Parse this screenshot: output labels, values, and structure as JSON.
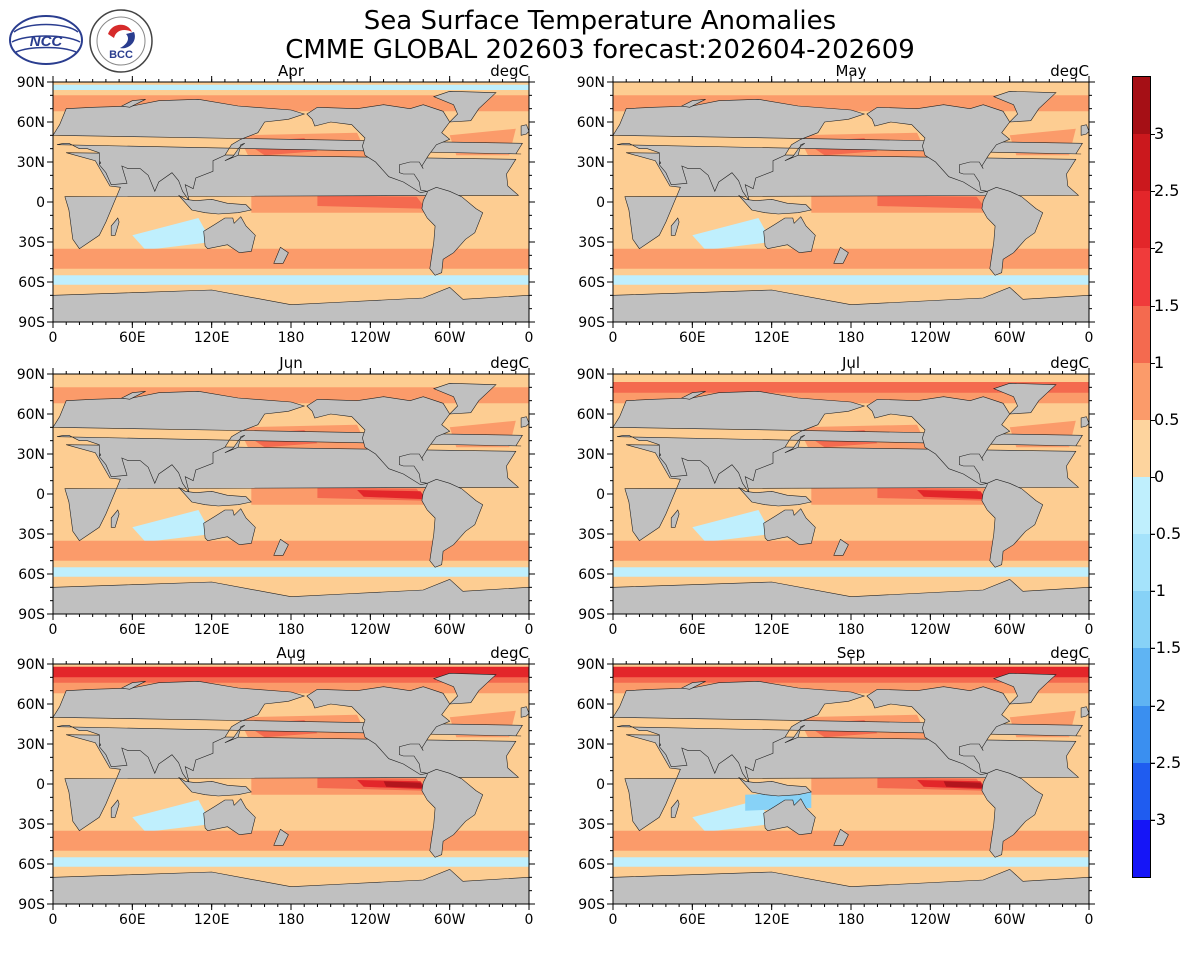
{
  "title": {
    "line1": "Sea Surface Temperature Anomalies",
    "line2": "CMME GLOBAL 202603 forecast:202604-202609"
  },
  "logos": {
    "left": {
      "icon": "ncc-logo",
      "text": "NCC"
    },
    "right": {
      "icon": "bcc-logo",
      "text": "BCC"
    }
  },
  "units": "degC",
  "axes": {
    "y_ticks": [
      "90N",
      "60N",
      "30N",
      "0",
      "30S",
      "60S",
      "90S"
    ],
    "x_ticks": [
      "0",
      "60E",
      "120E",
      "180",
      "120W",
      "60W",
      "0"
    ]
  },
  "panels": [
    {
      "month": "Apr",
      "units": "degC"
    },
    {
      "month": "May",
      "units": "degC"
    },
    {
      "month": "Jun",
      "units": "degC"
    },
    {
      "month": "Jul",
      "units": "degC"
    },
    {
      "month": "Aug",
      "units": "degC"
    },
    {
      "month": "Sep",
      "units": "degC"
    }
  ],
  "colorbar": {
    "labels": [
      "3",
      "2.5",
      "2",
      "1.5",
      "1",
      "0.5",
      "0",
      "-0.5",
      "-1",
      "-1.5",
      "-2",
      "-2.5",
      "-3"
    ],
    "colors": [
      "#a50f15",
      "#cb181d",
      "#e3262a",
      "#f03b3b",
      "#f46a4f",
      "#fb9b6a",
      "#fdd49e",
      "#bfeffd",
      "#a5e3fb",
      "#87d2f7",
      "#5fb4f3",
      "#3a8ff0",
      "#1f5cf0",
      "#1515f7"
    ]
  },
  "colors": {
    "land": "#c0c0c0",
    "ocean_base": "#fdcd92",
    "warm1": "#fb9b6a",
    "warm2": "#f46a4f",
    "warm3": "#e3262a",
    "warm4": "#b3151d",
    "cool1": "#bfeffd",
    "cool2": "#87d2f7"
  }
}
